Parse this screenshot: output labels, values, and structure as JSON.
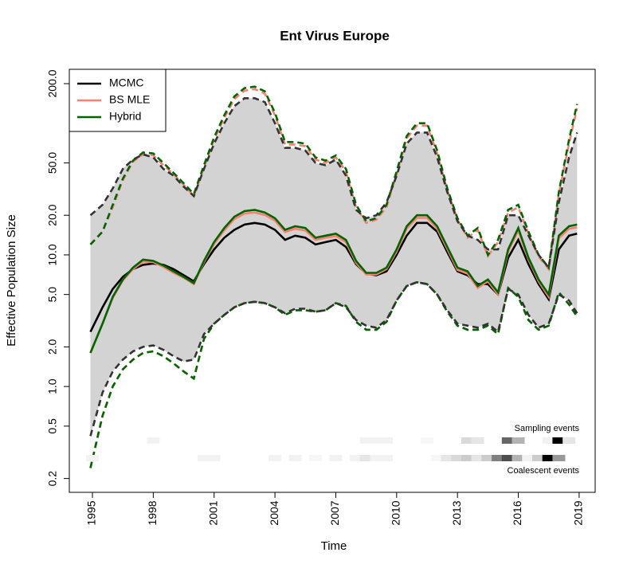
{
  "chart_data": {
    "type": "line",
    "title": "Ent Virus Europe",
    "xlabel": "Time",
    "ylabel": "Effective Population Size",
    "ylog": true,
    "xlim": [
      1993.86,
      2019.79
    ],
    "ylim": [
      0.157,
      257
    ],
    "xticks": [
      1995,
      1998,
      2001,
      2004,
      2007,
      2010,
      2013,
      2016,
      2019
    ],
    "yticks": [
      0.2,
      0.5,
      {
        "value": 1,
        "label": "1.0"
      },
      {
        "value": 2,
        "label": "2.0"
      },
      {
        "value": 5,
        "label": "5.0"
      },
      {
        "value": 10,
        "label": "10.0"
      },
      {
        "value": 20,
        "label": "20.0"
      },
      {
        "value": 50,
        "label": "50.0"
      },
      {
        "value": 200,
        "label": "200.0"
      }
    ],
    "legend": "top-left",
    "band_color": "#d3d3d3",
    "x": [
      1994.9,
      1995.5,
      1996,
      1996.5,
      1997,
      1997.5,
      1998,
      1998.5,
      1999,
      1999.5,
      2000,
      2000.5,
      2001,
      2001.5,
      2002,
      2002.5,
      2003,
      2003.5,
      2004,
      2004.5,
      2005,
      2005.5,
      2006,
      2006.5,
      2007,
      2007.5,
      2008,
      2008.5,
      2009,
      2009.5,
      2010,
      2010.5,
      2011,
      2011.5,
      2012,
      2012.5,
      2013,
      2013.5,
      2014,
      2014.5,
      2015,
      2015.5,
      2016,
      2016.5,
      2017,
      2017.5,
      2018,
      2018.5,
      2018.9
    ],
    "series": [
      {
        "name": "MCMC",
        "color": "#000000",
        "values": [
          2.6,
          4.0,
          5.5,
          6.8,
          7.8,
          8.4,
          8.6,
          8.4,
          7.8,
          7.0,
          6.3,
          8.5,
          11,
          13.5,
          15.5,
          17,
          17.5,
          17,
          15.5,
          13,
          14,
          13.5,
          12,
          12.5,
          13,
          11.5,
          8.5,
          7.2,
          7.0,
          7.5,
          10,
          14,
          17.5,
          17.5,
          15,
          10.5,
          7.5,
          7.0,
          6.0,
          6.0,
          5.0,
          9.5,
          13,
          8.5,
          6,
          4.6,
          11,
          14,
          14.5
        ],
        "upper": [
          20,
          24,
          32,
          45,
          53,
          58,
          55,
          45,
          40,
          33,
          28,
          45,
          70,
          100,
          135,
          155,
          155,
          145,
          100,
          65,
          65,
          62,
          50,
          48,
          53,
          40,
          22,
          19,
          20,
          25,
          40,
          70,
          85,
          85,
          55,
          30,
          18,
          14,
          13,
          11,
          11,
          20,
          20,
          14,
          10,
          8,
          25,
          55,
          85
        ],
        "lower": [
          0.42,
          0.9,
          1.3,
          1.6,
          1.85,
          2.0,
          2.05,
          1.9,
          1.7,
          1.55,
          1.6,
          2.5,
          3.0,
          3.5,
          4.0,
          4.3,
          4.4,
          4.3,
          4.0,
          3.6,
          3.9,
          3.9,
          3.7,
          3.8,
          4.3,
          4.0,
          3.2,
          2.9,
          2.8,
          3.2,
          4.5,
          5.8,
          6.2,
          6.0,
          5.0,
          3.8,
          3.0,
          2.9,
          2.8,
          3.0,
          2.6,
          5.5,
          5.0,
          3.5,
          2.8,
          3.0,
          5,
          4.5,
          3.6
        ]
      },
      {
        "name": "BS MLE",
        "color": "#fa8072",
        "values": [
          1.8,
          3,
          4.7,
          6.4,
          7.8,
          8.9,
          8.8,
          8.1,
          7.3,
          6.7,
          6.0,
          8.8,
          12.1,
          15.4,
          18.7,
          20.6,
          21,
          20.1,
          18.2,
          14.9,
          15.8,
          15.3,
          13,
          13.5,
          13.9,
          12.5,
          8.7,
          7.1,
          7.1,
          7.8,
          10.6,
          15.8,
          19.1,
          19.1,
          15.8,
          11.1,
          7.7,
          7.2,
          5.6,
          6.3,
          5.0,
          10.6,
          15.3,
          9.2,
          6.3,
          4.8,
          13.4,
          15.8,
          16.2
        ],
        "upper": [
          12,
          15,
          23,
          37,
          51,
          58,
          57,
          48,
          41,
          34,
          28,
          46,
          75,
          110,
          153,
          177,
          182,
          168,
          115,
          69,
          69,
          67,
          53,
          50,
          55,
          43,
          23,
          17.5,
          18.5,
          23,
          41,
          77,
          96,
          96,
          59,
          31,
          18.5,
          13.5,
          15.5,
          9.8,
          12.5,
          21,
          23,
          14.5,
          9.7,
          7.8,
          29,
          70,
          130
        ],
        "lower": [
          0.24,
          0.6,
          1.0,
          1.35,
          1.6,
          1.8,
          1.85,
          1.7,
          1.5,
          1.3,
          1.15,
          2.3,
          3.0,
          3.5,
          4.0,
          4.3,
          4.4,
          4.3,
          4.0,
          3.5,
          3.8,
          3.8,
          3.7,
          3.8,
          4.3,
          4.1,
          3.1,
          2.7,
          2.7,
          3.1,
          4.5,
          5.8,
          6.2,
          6.0,
          5.0,
          3.7,
          2.9,
          2.7,
          2.7,
          2.9,
          2.5,
          5.6,
          4.8,
          3.2,
          2.7,
          2.9,
          5.2,
          4.2,
          3.4
        ]
      },
      {
        "name": "Hybrid",
        "color": "#006400",
        "values": [
          1.8,
          3,
          4.8,
          6.5,
          8,
          9.2,
          9,
          8.3,
          7.5,
          6.8,
          6.1,
          9,
          12.5,
          16,
          19.5,
          21.5,
          22,
          21,
          19,
          15.5,
          16.5,
          16,
          13.5,
          14,
          14.5,
          13,
          9,
          7.3,
          7.3,
          8,
          11,
          16.5,
          20,
          20,
          16.5,
          11.5,
          8,
          7.5,
          5.8,
          6.5,
          5.2,
          11,
          16,
          9.5,
          6.5,
          5,
          14,
          16.5,
          17
        ],
        "upper": [
          12,
          15,
          24,
          38,
          52,
          60,
          59,
          50,
          42,
          35,
          29,
          48,
          78,
          115,
          160,
          185,
          190,
          175,
          120,
          72,
          72,
          70,
          55,
          52,
          57,
          45,
          24,
          18,
          19,
          24,
          43,
          80,
          100,
          100,
          62,
          32,
          19,
          14,
          16,
          10,
          13,
          22,
          24,
          15,
          10,
          8,
          30,
          75,
          140
        ],
        "lower": [
          0.24,
          0.6,
          1.0,
          1.35,
          1.6,
          1.8,
          1.85,
          1.7,
          1.5,
          1.3,
          1.15,
          2.3,
          3.0,
          3.5,
          4.0,
          4.3,
          4.4,
          4.3,
          4.0,
          3.5,
          3.8,
          3.8,
          3.7,
          3.8,
          4.3,
          4.1,
          3.1,
          2.7,
          2.7,
          3.1,
          4.5,
          5.8,
          6.2,
          6.0,
          5.0,
          3.7,
          2.9,
          2.7,
          2.7,
          2.9,
          2.5,
          5.6,
          4.8,
          3.2,
          2.7,
          2.9,
          5.2,
          4.2,
          3.4
        ]
      }
    ],
    "events": [
      {
        "label": "Sampling events",
        "x": [
          1998,
          2008.5,
          2009,
          2009.5,
          2011.5,
          2013.5,
          2014,
          2015.5,
          2016,
          2017.5,
          2018,
          2018.5
        ],
        "values": [
          0.05,
          0.05,
          0.05,
          0.05,
          0.03,
          0.15,
          0.1,
          0.6,
          0.3,
          0.05,
          1.0,
          0.1
        ]
      },
      {
        "label": "Coalescent events",
        "x": [
          1995,
          2000.5,
          2001,
          2004,
          2005,
          2006,
          2007,
          2008,
          2008.5,
          2009,
          2009.5,
          2012,
          2012.5,
          2013,
          2013.5,
          2014,
          2014.5,
          2015,
          2015.5,
          2016,
          2016.5,
          2017,
          2017.5,
          2018
        ],
        "values": [
          0.05,
          0.05,
          0.05,
          0.05,
          0.05,
          0.03,
          0.05,
          0.05,
          0.1,
          0.05,
          0.05,
          0.03,
          0.1,
          0.15,
          0.2,
          0.1,
          0.2,
          0.5,
          0.7,
          0.3,
          0.05,
          0.2,
          1.0,
          0.4
        ]
      }
    ]
  }
}
